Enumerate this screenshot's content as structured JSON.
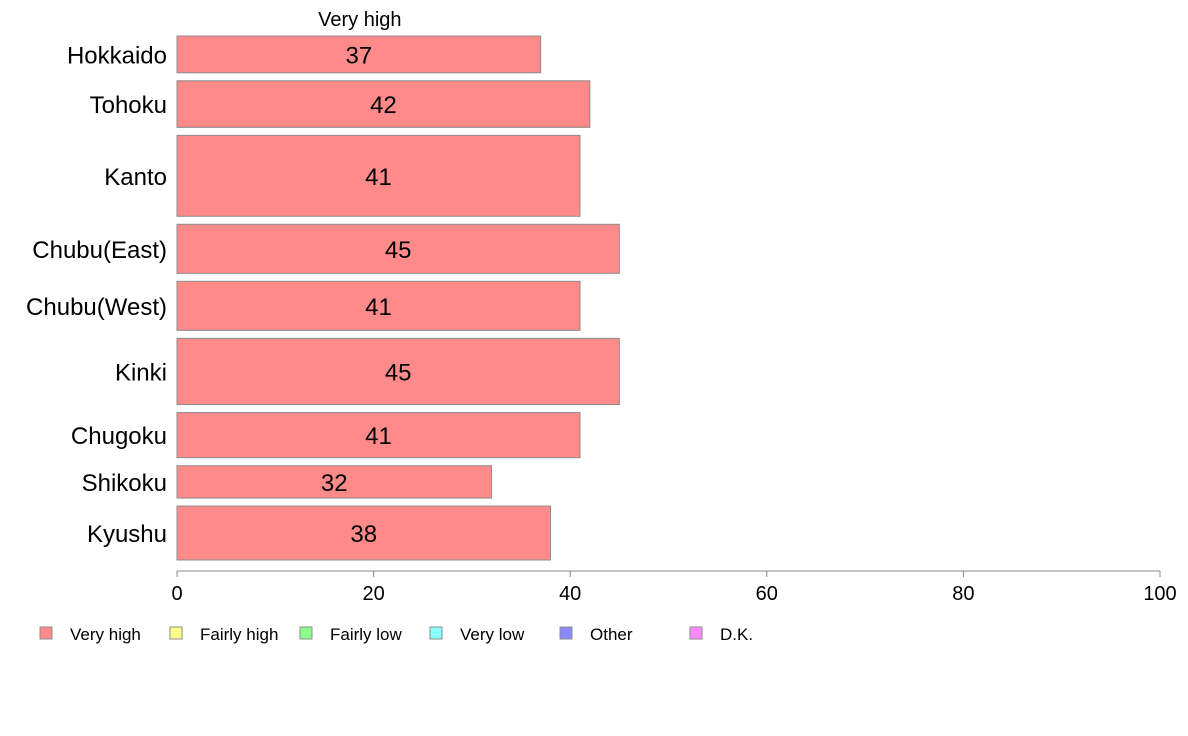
{
  "chart_data": {
    "type": "bar",
    "orientation": "horizontal",
    "stacked": true,
    "categories": [
      "Hokkaido",
      "Tohoku",
      "Kanto",
      "Chubu(East)",
      "Chubu(West)",
      "Kinki",
      "Chugoku",
      "Shikoku",
      "Kyushu"
    ],
    "series": [
      {
        "name": "Very high",
        "color": "#ff8a8a",
        "values": [
          37,
          42,
          41,
          45,
          41,
          45,
          41,
          32,
          38
        ]
      }
    ],
    "series_header": "Very high",
    "bar_weights": [
      0.75,
      0.95,
      1.65,
      1.0,
      1.0,
      1.35,
      0.92,
      0.66,
      1.1
    ],
    "xlim": [
      0,
      100
    ],
    "xticks": [
      0,
      20,
      40,
      60,
      80,
      100
    ],
    "legend": [
      {
        "label": "Very high",
        "color": "#ff8a8a"
      },
      {
        "label": "Fairly high",
        "color": "#ffff8a"
      },
      {
        "label": "Fairly low",
        "color": "#8aff8a"
      },
      {
        "label": "Very low",
        "color": "#8affff"
      },
      {
        "label": "Other",
        "color": "#8a8aff"
      },
      {
        "label": "D.K.",
        "color": "#ff8aff"
      }
    ],
    "legend_position": "bottom-left",
    "grid": false
  }
}
